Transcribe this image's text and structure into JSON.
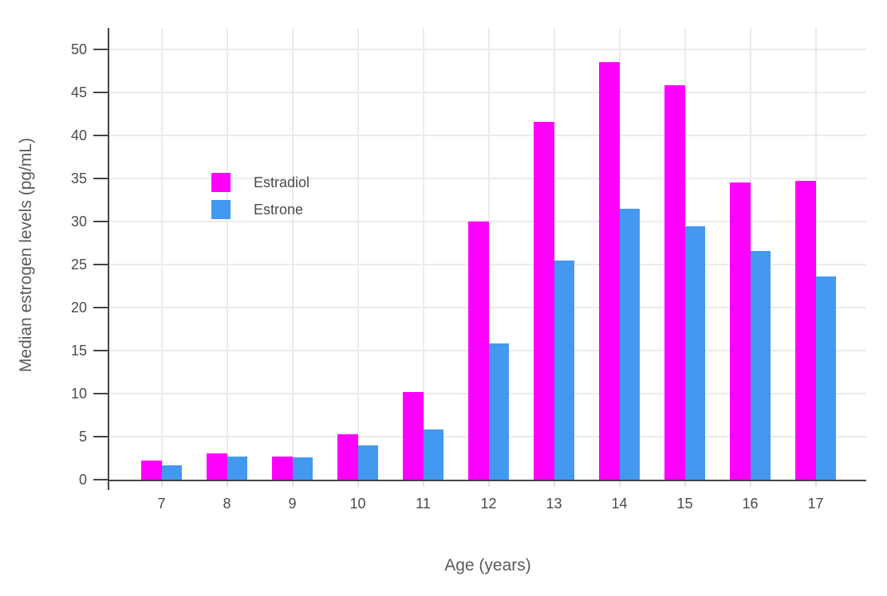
{
  "chart_data": {
    "type": "bar",
    "title": "",
    "xlabel": "Age (years)",
    "ylabel": "Median estrogen levels (pg/mL)",
    "categories": [
      "7",
      "8",
      "9",
      "10",
      "11",
      "12",
      "13",
      "14",
      "15",
      "16",
      "17"
    ],
    "series": [
      {
        "name": "Estradiol",
        "color": "#ff00ff",
        "values": [
          2.2,
          3.1,
          2.7,
          5.3,
          10.2,
          30.0,
          41.6,
          48.5,
          45.8,
          34.5,
          34.7
        ]
      },
      {
        "name": "Estrone",
        "color": "#4398f0",
        "values": [
          1.7,
          2.7,
          2.6,
          4.0,
          5.8,
          15.8,
          25.5,
          31.5,
          29.4,
          26.6,
          23.6
        ]
      }
    ],
    "ylim": [
      0,
      52.5
    ],
    "yticks": [
      0,
      5,
      10,
      15,
      20,
      25,
      30,
      35,
      40,
      45,
      50
    ],
    "grid": "on",
    "legend_position": "inside-top-left",
    "colors": {
      "axis_line": "#444444",
      "grid_line": "#ebebeb",
      "tick_text": "#4a4a4a",
      "title_text": "#5a5a5a",
      "background": "#ffffff"
    }
  }
}
